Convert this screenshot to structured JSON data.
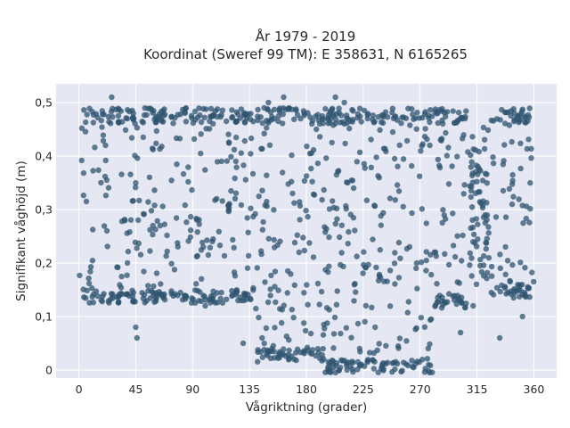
{
  "chart_data": {
    "type": "scatter",
    "title_line1": "År 1979 - 2019",
    "title_line2": "Koordinat (Sweref 99 TM): E 358631, N 6165265",
    "xlabel": "Vågriktning (grader)",
    "ylabel": "Signifikant våghöjd (m)",
    "xlim": [
      -18,
      378
    ],
    "ylim": [
      -0.015,
      0.535
    ],
    "x_ticks": [
      0,
      45,
      90,
      135,
      180,
      225,
      270,
      315,
      360
    ],
    "x_tick_labels": [
      "0",
      "45",
      "90",
      "135",
      "180",
      "225",
      "270",
      "315",
      "360"
    ],
    "y_ticks": [
      0,
      0.1,
      0.2,
      0.3,
      0.4,
      0.5
    ],
    "y_tick_labels": [
      "0",
      "0,1",
      "0,2",
      "0,3",
      "0,4",
      "0,5"
    ],
    "grid": true,
    "marker_color": "#2f5470",
    "plot_background": "#e5e8f2",
    "regions": [
      {
        "x": [
          0,
          140
        ],
        "y": [
          0.15,
          0.46
        ]
      },
      {
        "x": [
          140,
          195
        ],
        "y": [
          0.04,
          0.46
        ]
      },
      {
        "x": [
          195,
          280
        ],
        "y": [
          0.02,
          0.46
        ]
      },
      {
        "x": [
          280,
          310
        ],
        "y": [
          0.14,
          0.46
        ]
      },
      {
        "x": [
          325,
          360
        ],
        "y": [
          0.16,
          0.46
        ]
      }
    ],
    "outliers": [
      {
        "x": 26,
        "y": 0.51
      },
      {
        "x": 45,
        "y": 0.08
      },
      {
        "x": 46,
        "y": 0.06
      },
      {
        "x": 130,
        "y": 0.05
      },
      {
        "x": 145,
        "y": 0.06
      },
      {
        "x": 150,
        "y": 0.5
      },
      {
        "x": 162,
        "y": 0.51
      },
      {
        "x": 203,
        "y": 0.51
      },
      {
        "x": 210,
        "y": 0.5
      },
      {
        "x": 302,
        "y": 0.07
      },
      {
        "x": 312,
        "y": 0.12
      },
      {
        "x": 333,
        "y": 0.06
      },
      {
        "x": 351,
        "y": 0.1
      },
      {
        "x": 100,
        "y": 0.12
      },
      {
        "x": 240,
        "y": 0.01
      }
    ]
  }
}
